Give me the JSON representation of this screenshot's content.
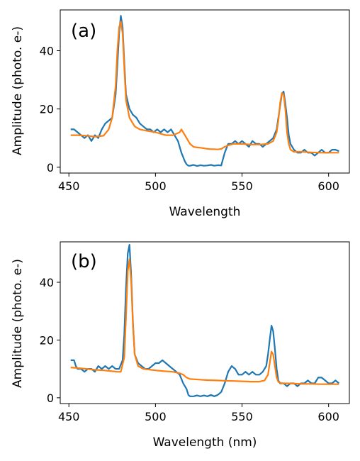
{
  "chart_data": [
    {
      "type": "line",
      "panel_label": "(a)",
      "xlabel": "Wavelength",
      "ylabel": "Amplitude (photo. e-)",
      "xlim": [
        445,
        612
      ],
      "ylim": [
        -2,
        54
      ],
      "xticks": [
        450,
        500,
        550,
        600
      ],
      "yticks": [
        0,
        20,
        40
      ],
      "grid": false,
      "series": [
        {
          "color": "#1f77b4",
          "x": [
            451,
            453,
            455,
            457,
            459,
            461,
            463,
            465,
            467,
            469,
            471,
            473,
            475,
            477,
            478,
            479,
            480,
            481,
            482,
            483,
            485,
            487,
            489,
            491,
            493,
            495,
            497,
            499,
            501,
            503,
            505,
            507,
            509,
            511,
            513,
            515,
            517,
            518,
            519,
            520,
            522,
            524,
            526,
            528,
            530,
            532,
            534,
            536,
            538,
            540,
            542,
            544,
            546,
            548,
            550,
            552,
            554,
            556,
            558,
            560,
            562,
            564,
            566,
            568,
            570,
            571,
            572,
            573,
            574,
            575,
            576,
            577,
            578,
            580,
            582,
            584,
            586,
            588,
            590,
            592,
            594,
            596,
            598,
            600,
            602,
            604,
            606
          ],
          "y": [
            13,
            13,
            12,
            11,
            10,
            11,
            9,
            11,
            10,
            13,
            15,
            16,
            17,
            25,
            35,
            46,
            52,
            48,
            36,
            25,
            20,
            18,
            17,
            15,
            14,
            13,
            13,
            12,
            13,
            12,
            13,
            12,
            13,
            11,
            9,
            5,
            2,
            1,
            0.5,
            0.5,
            0.8,
            0.4,
            0.7,
            0.5,
            0.6,
            0.8,
            0.5,
            0.7,
            0.6,
            5,
            8,
            8,
            9,
            8,
            9,
            8,
            7,
            9,
            8,
            8,
            7,
            8,
            9,
            10,
            13,
            17,
            21,
            25,
            26,
            22,
            17,
            11,
            8,
            6,
            5,
            5,
            6,
            5,
            5,
            4,
            5,
            6,
            5,
            5,
            6,
            6,
            5.5
          ]
        },
        {
          "color": "#ff7f0e",
          "x": [
            451,
            455,
            460,
            465,
            470,
            473,
            475,
            477,
            478,
            479,
            480,
            481,
            482,
            483,
            485,
            488,
            491,
            495,
            500,
            503,
            506,
            508,
            510,
            512,
            514,
            515,
            516,
            518,
            520,
            522,
            524,
            526,
            528,
            530,
            532,
            534,
            536,
            538,
            540,
            542,
            545,
            550,
            555,
            560,
            565,
            568,
            570,
            571,
            572,
            573,
            574,
            575,
            576,
            577,
            578,
            580,
            584,
            590,
            595,
            600,
            606
          ],
          "y": [
            11,
            11,
            10.8,
            10.5,
            10.8,
            13,
            17,
            28,
            40,
            48,
            50,
            46,
            34,
            23,
            17,
            14,
            13,
            12.5,
            12,
            11.5,
            11,
            11,
            11,
            11.5,
            12,
            13,
            12,
            10,
            8,
            7,
            6.8,
            6.7,
            6.5,
            6.3,
            6.2,
            6.2,
            6.1,
            6.3,
            7,
            7.5,
            8,
            8,
            7.8,
            7.8,
            8,
            9,
            12,
            16,
            22,
            25.5,
            25,
            20,
            12,
            8,
            6,
            5.3,
            5.3,
            5.1,
            5,
            5,
            5
          ]
        }
      ]
    },
    {
      "type": "line",
      "panel_label": "(b)",
      "xlabel": "Wavelength (nm)",
      "ylabel": "Amplitude (photo. e-)",
      "xlim": [
        445,
        612
      ],
      "ylim": [
        -2,
        54
      ],
      "xticks": [
        450,
        500,
        550,
        600
      ],
      "yticks": [
        0,
        20,
        40
      ],
      "grid": false,
      "series": [
        {
          "color": "#1f77b4",
          "x": [
            451,
            453,
            454,
            455,
            457,
            459,
            461,
            463,
            465,
            467,
            469,
            471,
            473,
            475,
            477,
            479,
            481,
            482,
            483,
            484,
            485,
            486,
            487,
            488,
            490,
            492,
            494,
            496,
            498,
            500,
            502,
            504,
            506,
            508,
            510,
            512,
            514,
            516,
            518,
            519,
            520,
            522,
            524,
            526,
            528,
            530,
            532,
            534,
            536,
            538,
            540,
            542,
            544,
            546,
            548,
            550,
            552,
            554,
            556,
            558,
            560,
            562,
            564,
            565,
            566,
            567,
            568,
            569,
            570,
            571,
            572,
            574,
            576,
            578,
            580,
            582,
            584,
            586,
            588,
            590,
            592,
            594,
            596,
            598,
            600,
            602,
            604,
            606
          ],
          "y": [
            13,
            13,
            11,
            10,
            10,
            9,
            10,
            10,
            9,
            11,
            10,
            11,
            10,
            11,
            10,
            10,
            13,
            22,
            38,
            50,
            53,
            42,
            26,
            15,
            12,
            11,
            10,
            10,
            11,
            12,
            12,
            13,
            12,
            11,
            10,
            9,
            8,
            5,
            3,
            1,
            0.5,
            0.5,
            0.8,
            0.5,
            0.8,
            0.5,
            1,
            0.5,
            1,
            2,
            5,
            9,
            11,
            10,
            8,
            8,
            9,
            8,
            9,
            8,
            8,
            9,
            11,
            15,
            20,
            25,
            23,
            17,
            10,
            6,
            5,
            5,
            4,
            5,
            5,
            4,
            5,
            5,
            6,
            5,
            5,
            7,
            7,
            6,
            5,
            5,
            6,
            5
          ]
        },
        {
          "color": "#ff7f0e",
          "x": [
            451,
            455,
            460,
            465,
            470,
            475,
            478,
            480,
            482,
            483,
            484,
            485,
            486,
            487,
            488,
            490,
            493,
            496,
            500,
            505,
            510,
            514,
            516,
            518,
            520,
            525,
            530,
            535,
            540,
            545,
            550,
            555,
            560,
            563,
            565,
            566,
            567,
            568,
            569,
            570,
            571,
            573,
            576,
            580,
            585,
            590,
            595,
            600,
            606
          ],
          "y": [
            10.5,
            10.3,
            10,
            9.7,
            9.5,
            9.2,
            9,
            9,
            14,
            28,
            44,
            48,
            40,
            25,
            15,
            11,
            10,
            9.8,
            9.5,
            9.2,
            9,
            8.5,
            8,
            7,
            6.5,
            6.3,
            6.1,
            6,
            5.9,
            5.8,
            5.7,
            5.6,
            5.6,
            6,
            8,
            12,
            16,
            15,
            11,
            7,
            5.5,
            5,
            5,
            4.9,
            4.8,
            4.8,
            4.7,
            4.7,
            4.7
          ]
        }
      ]
    }
  ]
}
